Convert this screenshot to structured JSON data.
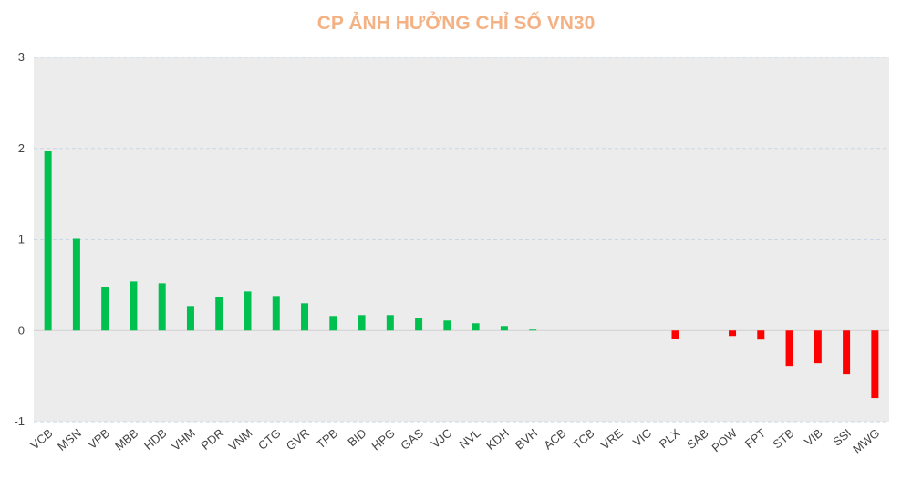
{
  "chart_data": {
    "type": "bar",
    "title": "CP ẢNH HƯỞNG CHỈ SỐ VN30",
    "xlabel": "",
    "ylabel": "",
    "ylim": [
      -1,
      3
    ],
    "yticks": [
      3,
      2,
      1,
      0,
      -1
    ],
    "grid": true,
    "legend": "none",
    "categories": [
      "VCB",
      "MSN",
      "VPB",
      "MBB",
      "HDB",
      "VHM",
      "PDR",
      "VNM",
      "CTG",
      "GVR",
      "TPB",
      "BID",
      "HPG",
      "GAS",
      "VJC",
      "NVL",
      "KDH",
      "BVH",
      "ACB",
      "TCB",
      "VRE",
      "VIC",
      "PLX",
      "SAB",
      "POW",
      "FPT",
      "STB",
      "VIB",
      "SSI",
      "MWG"
    ],
    "values": [
      1.97,
      1.01,
      0.48,
      0.54,
      0.52,
      0.27,
      0.37,
      0.43,
      0.38,
      0.3,
      0.16,
      0.17,
      0.17,
      0.14,
      0.11,
      0.08,
      0.05,
      0.01,
      0,
      0,
      0,
      0,
      -0.09,
      0,
      -0.06,
      -0.1,
      -0.39,
      -0.36,
      -0.48,
      -0.74
    ],
    "colors": {
      "positive": "#00c050",
      "negative": "#ff0000",
      "plot_bg": "#ececec",
      "grid": "#c9d7e6",
      "title": "#f4b183"
    }
  }
}
